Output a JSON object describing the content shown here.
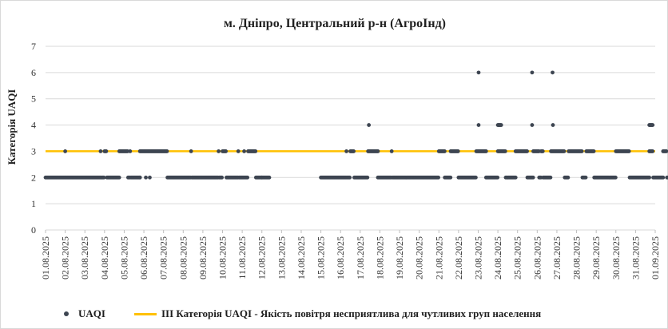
{
  "chart_data": {
    "type": "scatter",
    "title": "м. Дніпро, Центральний р-н (АгроІнд)",
    "ylabel": "Категорія UAQI",
    "xlabel": "",
    "ylim": [
      0,
      7
    ],
    "yticks": [
      0,
      1,
      2,
      3,
      4,
      5,
      6,
      7
    ],
    "x_tick_labels": [
      "01.08.2025",
      "02.08.2025",
      "03.08.2025",
      "04.08.2025",
      "05.08.2025",
      "06.08.2025",
      "07.08.2025",
      "08.08.2025",
      "09.08.2025",
      "10.08.2025",
      "11.08.2025",
      "12.08.2025",
      "13.08.2025",
      "14.08.2025",
      "15.08.2025",
      "16.08.2025",
      "17.08.2025",
      "18.08.2025",
      "19.08.2025",
      "20.08.2025",
      "21.08.2025",
      "22.08.2025",
      "23.08.2025",
      "24.08.2025",
      "25.08.2025",
      "26.08.2025",
      "27.08.2025",
      "28.08.2025",
      "29.08.2025",
      "30.08.2025",
      "31.08.2025",
      "01.09.2025"
    ],
    "grid": "horizontal",
    "legend_position": "bottom",
    "series": [
      {
        "name": "UAQI",
        "color": "#3d4551",
        "note_runs": "hourly points; each run is [start_day_offset, end_day_offset, value] in days since 01.08.2025 00:00",
        "runs": [
          [
            0.0,
            1.0,
            2
          ],
          [
            1.0,
            1.04,
            3
          ],
          [
            1.04,
            2.8,
            2
          ],
          [
            2.8,
            2.84,
            3
          ],
          [
            2.84,
            3.0,
            2
          ],
          [
            3.0,
            3.12,
            3
          ],
          [
            3.12,
            3.75,
            2
          ],
          [
            3.75,
            4.2,
            3
          ],
          [
            4.2,
            4.3,
            2
          ],
          [
            4.3,
            4.34,
            3
          ],
          [
            4.34,
            4.8,
            2
          ],
          [
            4.8,
            6.2,
            3
          ],
          [
            4.8,
            4.8,
            2
          ],
          [
            5.1,
            5.1,
            2
          ],
          [
            5.3,
            5.3,
            2
          ],
          [
            6.2,
            7.4,
            2
          ],
          [
            7.4,
            7.44,
            3
          ],
          [
            7.44,
            8.8,
            2
          ],
          [
            8.8,
            8.84,
            3
          ],
          [
            8.84,
            9.0,
            2
          ],
          [
            9.0,
            9.2,
            3
          ],
          [
            9.2,
            9.8,
            2
          ],
          [
            9.8,
            9.84,
            3
          ],
          [
            9.84,
            10.1,
            2
          ],
          [
            10.1,
            10.14,
            3
          ],
          [
            10.14,
            10.3,
            2
          ],
          [
            10.3,
            10.7,
            3
          ],
          [
            10.7,
            11.0,
            2
          ],
          [
            11.0,
            11.4,
            2
          ],
          [
            14.0,
            15.3,
            2
          ],
          [
            15.3,
            15.34,
            3
          ],
          [
            15.34,
            15.5,
            2
          ],
          [
            15.5,
            15.7,
            3
          ],
          [
            15.7,
            16.4,
            2
          ],
          [
            16.4,
            16.9,
            3
          ],
          [
            16.44,
            16.44,
            4
          ],
          [
            16.9,
            17.6,
            2
          ],
          [
            17.6,
            17.64,
            3
          ],
          [
            17.64,
            20.0,
            2
          ],
          [
            20.0,
            20.3,
            3
          ],
          [
            20.3,
            20.6,
            2
          ],
          [
            20.6,
            21.0,
            3
          ],
          [
            21.0,
            21.9,
            2
          ],
          [
            21.9,
            22.4,
            3
          ],
          [
            22.02,
            22.02,
            6
          ],
          [
            22.02,
            22.02,
            4
          ],
          [
            22.4,
            23.0,
            2
          ],
          [
            23.0,
            23.2,
            4
          ],
          [
            23.0,
            23.4,
            3
          ],
          [
            23.4,
            23.9,
            2
          ],
          [
            23.9,
            24.5,
            3
          ],
          [
            24.5,
            24.8,
            2
          ],
          [
            24.74,
            24.74,
            6
          ],
          [
            24.74,
            24.74,
            4
          ],
          [
            24.8,
            25.1,
            3
          ],
          [
            25.1,
            25.2,
            2
          ],
          [
            25.2,
            25.3,
            3
          ],
          [
            25.3,
            25.7,
            2
          ],
          [
            25.7,
            26.4,
            3
          ],
          [
            25.78,
            25.78,
            6
          ],
          [
            25.8,
            25.84,
            4
          ],
          [
            26.4,
            26.6,
            2
          ],
          [
            26.6,
            27.3,
            3
          ],
          [
            27.3,
            27.5,
            2
          ],
          [
            27.5,
            27.9,
            3
          ],
          [
            27.9,
            29.0,
            2
          ],
          [
            29.0,
            29.7,
            3
          ],
          [
            29.7,
            30.7,
            2
          ],
          [
            30.7,
            30.9,
            4
          ],
          [
            30.7,
            30.9,
            3
          ],
          [
            30.9,
            31.4,
            2
          ],
          [
            31.4,
            31.6,
            3
          ],
          [
            31.6,
            32.0,
            2
          ]
        ]
      },
      {
        "name": "ІІІ Категорія UAQI - Якість повітря несприятлива для чутливих груп населення",
        "type": "line",
        "color": "#ffc000",
        "value": 3
      }
    ]
  },
  "legend": {
    "uaqi_label": "UAQI",
    "threshold_label": "ІІІ Категорія UAQI - Якість повітря несприятлива для чутливих груп населення"
  }
}
